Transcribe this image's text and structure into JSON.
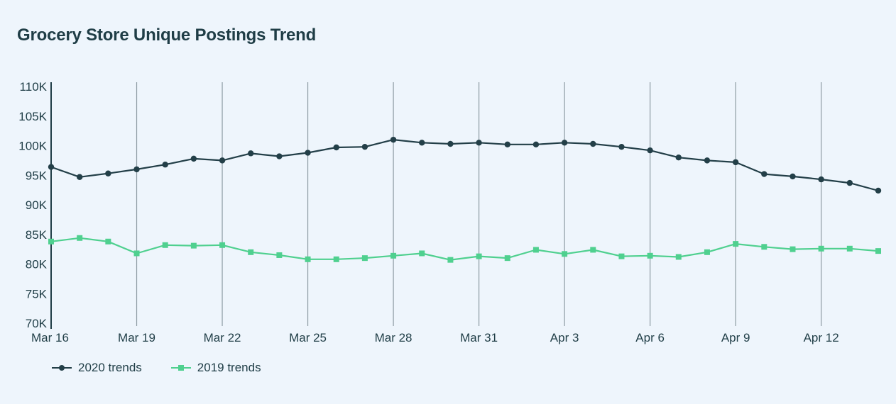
{
  "colors": {
    "background": "#eef5fc",
    "series_2020": "#233f48",
    "series_2019": "#4fd08f",
    "gridline": "#8d9ba3",
    "axis": "#1f3d46"
  },
  "chart_data": {
    "type": "line",
    "title": "Grocery Store Unique Postings Trend",
    "xlabel": "",
    "ylabel": "",
    "ylim": [
      70000,
      110000
    ],
    "yticks": [
      {
        "value": 70000,
        "label": "70K"
      },
      {
        "value": 75000,
        "label": "75K"
      },
      {
        "value": 80000,
        "label": "80K"
      },
      {
        "value": 85000,
        "label": "85K"
      },
      {
        "value": 90000,
        "label": "90K"
      },
      {
        "value": 95000,
        "label": "95K"
      },
      {
        "value": 100000,
        "label": "100K"
      },
      {
        "value": 105000,
        "label": "105K"
      },
      {
        "value": 110000,
        "label": "110K"
      }
    ],
    "x": [
      "Mar 16",
      "Mar 17",
      "Mar 18",
      "Mar 19",
      "Mar 20",
      "Mar 21",
      "Mar 22",
      "Mar 23",
      "Mar 24",
      "Mar 25",
      "Mar 26",
      "Mar 27",
      "Mar 28",
      "Mar 29",
      "Mar 30",
      "Mar 31",
      "Apr 1",
      "Apr 2",
      "Apr 3",
      "Apr 4",
      "Apr 5",
      "Apr 6",
      "Apr 7",
      "Apr 8",
      "Apr 9",
      "Apr 10",
      "Apr 11",
      "Apr 12",
      "Apr 13",
      "Apr 14"
    ],
    "xticks": [
      "Mar 16",
      "Mar 19",
      "Mar 22",
      "Mar 25",
      "Mar 28",
      "Mar 31",
      "Apr 3",
      "Apr 6",
      "Apr 9",
      "Apr 12"
    ],
    "grid": "vertical at x ticks",
    "legend_position": "bottom-left",
    "series": [
      {
        "name": "2020 trends",
        "marker": "circle",
        "values": [
          96400,
          94700,
          95300,
          96000,
          96800,
          97800,
          97500,
          98700,
          98200,
          98800,
          99700,
          99800,
          101000,
          100500,
          100300,
          100500,
          100200,
          100200,
          100500,
          100300,
          99800,
          99200,
          98000,
          97500,
          97200,
          95200,
          94800,
          94300,
          93700,
          92400
        ]
      },
      {
        "name": "2019 trends",
        "marker": "square",
        "values": [
          83800,
          84400,
          83800,
          81800,
          83200,
          83100,
          83200,
          82000,
          81500,
          80800,
          80800,
          81000,
          81400,
          81800,
          80700,
          81300,
          81000,
          82400,
          81700,
          82400,
          81300,
          81400,
          81200,
          82000,
          83400,
          82900,
          82500,
          82600,
          82600,
          82200
        ]
      }
    ]
  }
}
